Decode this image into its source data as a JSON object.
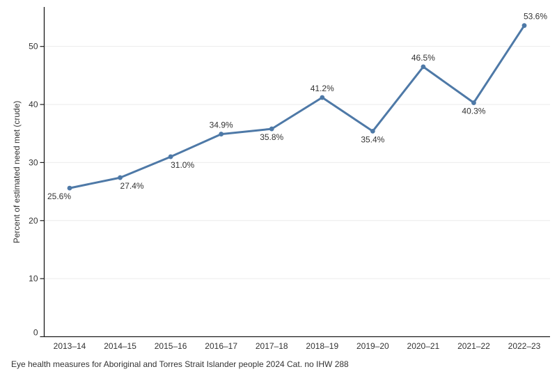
{
  "caption": "Eye health measures for Aboriginal and Torres Strait Islander people 2024 Cat. no IHW 288",
  "chart_data": {
    "type": "line",
    "title": "",
    "xlabel": "",
    "ylabel": "Percent of estimated need met (crude)",
    "categories": [
      "2013–14",
      "2014–15",
      "2015–16",
      "2016–17",
      "2017–18",
      "2018–19",
      "2019–20",
      "2020–21",
      "2021–22",
      "2022–23"
    ],
    "series": [
      {
        "name": "Percent of estimated need met (crude)",
        "values": [
          25.6,
          27.4,
          31.0,
          34.9,
          35.8,
          41.2,
          35.4,
          46.5,
          40.3,
          53.6
        ]
      }
    ],
    "data_labels": [
      "25.6%",
      "27.4%",
      "31.0%",
      "34.9%",
      "35.8%",
      "41.2%",
      "35.4%",
      "46.5%",
      "40.3%",
      "53.6%"
    ],
    "label_positions": [
      "below-end",
      "below-start",
      "below-start",
      "above",
      "below",
      "above",
      "below",
      "above",
      "below",
      "above-start"
    ],
    "ylim": [
      0,
      56.8
    ],
    "yticks": [
      0,
      10,
      20,
      30,
      40,
      50
    ],
    "grid": "horizontal",
    "legend": "none",
    "colors": {
      "line": "#4e79a7",
      "marker": "#4e79a7",
      "grid": "#ebebeb",
      "axis": "#1a1a1a",
      "tick_label": "#333333",
      "data_label": "#333333",
      "background": "#ffffff"
    }
  }
}
